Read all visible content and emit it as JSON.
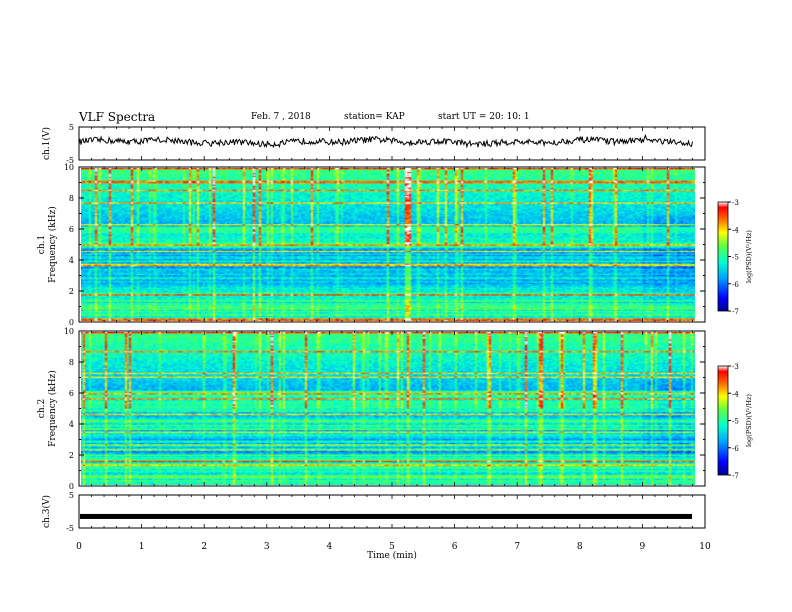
{
  "header": {
    "title": "VLF Spectra",
    "date": "Feb. 7 , 2018",
    "station": "station= KAP",
    "start": "start UT = 20: 10: 1"
  },
  "chart_data": [
    {
      "type": "line",
      "name": "ch1-voltage",
      "ylabel": "ch.1(V)",
      "ylim": [
        -5,
        5
      ],
      "yticks": [
        "5",
        "-5"
      ],
      "xlim": [
        0,
        10
      ],
      "approx_level": 0.5,
      "approx_noise": 1.2
    },
    {
      "type": "heatmap",
      "name": "ch1-spectrogram",
      "ylabel": "ch.1\nFrequency (kHz)",
      "ylim": [
        0,
        10
      ],
      "yticks": [
        "0",
        "2",
        "4",
        "6",
        "8",
        "10"
      ],
      "xlim": [
        0,
        9.8
      ],
      "colorbar": {
        "label": "log(PSD)(V²/Hz)",
        "range": [
          -7,
          -3
        ],
        "ticks": [
          "-3",
          "-4",
          "-5",
          "-6",
          "-7"
        ]
      }
    },
    {
      "type": "heatmap",
      "name": "ch2-spectrogram",
      "ylabel": "ch.2\nFrequency (kHz)",
      "ylim": [
        0,
        10
      ],
      "yticks": [
        "0",
        "2",
        "4",
        "6",
        "8",
        "10"
      ],
      "xlim": [
        0,
        9.8
      ],
      "colorbar": {
        "label": "log(PSD)(V²/Hz)",
        "range": [
          -7,
          -3
        ],
        "ticks": [
          "-3",
          "-4",
          "-5",
          "-6",
          "-7"
        ]
      }
    },
    {
      "type": "line",
      "name": "ch3-voltage",
      "ylabel": "ch.3(V)",
      "ylim": [
        -5,
        5
      ],
      "yticks": [
        "5",
        "-5"
      ],
      "xlim": [
        0,
        10
      ],
      "approx_level": -1.5,
      "approx_noise": 0
    }
  ],
  "xaxis": {
    "label": "Time (min)",
    "ticks": [
      "0",
      "1",
      "2",
      "3",
      "4",
      "5",
      "6",
      "7",
      "8",
      "9",
      "10"
    ],
    "range": [
      0,
      10
    ]
  }
}
